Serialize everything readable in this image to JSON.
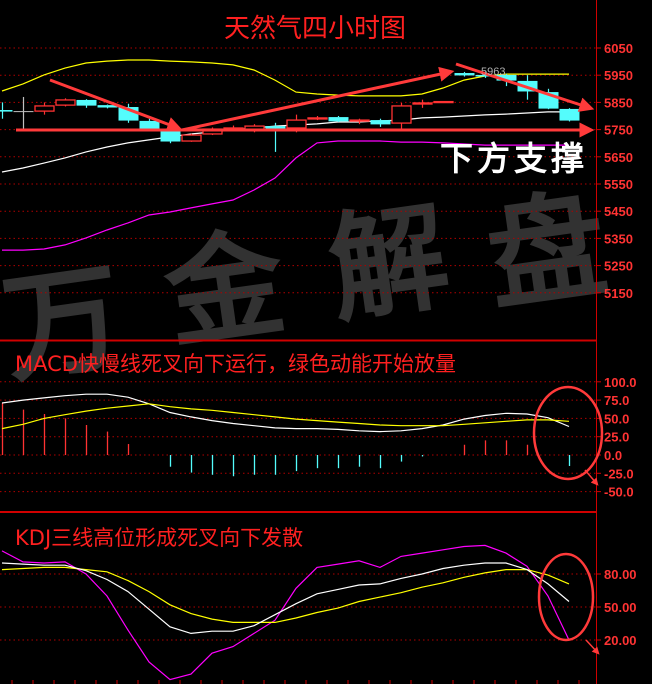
{
  "title": "天然气四小时图",
  "annotations": {
    "support_label": "下方支撑",
    "high_label": "5963",
    "macd_note": "MACD快慢线死叉向下运行，绿色动能开始放量",
    "kdj_note": "KDJ三线高位形成死叉向下发散"
  },
  "watermark": [
    "万",
    "金",
    "解",
    "盘"
  ],
  "colors": {
    "up": "#ff3232",
    "down": "#54fcfc",
    "doji": "#c0c0c0",
    "upper_band": "#ffff00",
    "middle_band": "#ffffff",
    "lower_band": "#ff00ff",
    "grid": "#b00000",
    "annotation": "#ff3a3a"
  },
  "chart_data": [
    {
      "type": "candlestick",
      "title": "天然气四小时图",
      "y_ticks": [
        "6050",
        "5950",
        "5850",
        "5750",
        "5650",
        "5550",
        "5450",
        "5350",
        "5250",
        "5150"
      ],
      "ylim": [
        5120,
        6225
      ],
      "grid": true,
      "candles": [
        {
          "o": 5822,
          "h": 5850,
          "l": 5790,
          "c": 5818
        },
        {
          "o": 5818,
          "h": 5870,
          "l": 5752,
          "c": 5818
        },
        {
          "o": 5818,
          "h": 5850,
          "l": 5805,
          "c": 5837
        },
        {
          "o": 5840,
          "h": 5865,
          "l": 5835,
          "c": 5859
        },
        {
          "o": 5859,
          "h": 5862,
          "l": 5830,
          "c": 5840
        },
        {
          "o": 5840,
          "h": 5842,
          "l": 5828,
          "c": 5833
        },
        {
          "o": 5833,
          "h": 5845,
          "l": 5775,
          "c": 5785
        },
        {
          "o": 5782,
          "h": 5790,
          "l": 5745,
          "c": 5752
        },
        {
          "o": 5749,
          "h": 5752,
          "l": 5700,
          "c": 5708
        },
        {
          "o": 5708,
          "h": 5735,
          "l": 5705,
          "c": 5730
        },
        {
          "o": 5734,
          "h": 5758,
          "l": 5730,
          "c": 5752
        },
        {
          "o": 5750,
          "h": 5765,
          "l": 5745,
          "c": 5756
        },
        {
          "o": 5749,
          "h": 5770,
          "l": 5740,
          "c": 5763
        },
        {
          "o": 5763,
          "h": 5775,
          "l": 5668,
          "c": 5756
        },
        {
          "o": 5756,
          "h": 5805,
          "l": 5740,
          "c": 5785
        },
        {
          "o": 5789,
          "h": 5800,
          "l": 5785,
          "c": 5793
        },
        {
          "o": 5796,
          "h": 5800,
          "l": 5778,
          "c": 5782
        },
        {
          "o": 5782,
          "h": 5790,
          "l": 5770,
          "c": 5785
        },
        {
          "o": 5785,
          "h": 5790,
          "l": 5760,
          "c": 5771
        },
        {
          "o": 5774,
          "h": 5848,
          "l": 5750,
          "c": 5837
        },
        {
          "o": 5844,
          "h": 5860,
          "l": 5830,
          "c": 5848
        },
        {
          "o": 5851,
          "h": 5853,
          "l": 5851,
          "c": 5853
        },
        {
          "o": 5958,
          "h": 5962,
          "l": 5945,
          "c": 5951
        },
        {
          "o": 5951,
          "h": 5963,
          "l": 5940,
          "c": 5947
        },
        {
          "o": 5951,
          "h": 5955,
          "l": 5910,
          "c": 5932
        },
        {
          "o": 5929,
          "h": 5950,
          "l": 5860,
          "c": 5892
        },
        {
          "o": 5888,
          "h": 5900,
          "l": 5825,
          "c": 5829
        },
        {
          "o": 5826,
          "h": 5829,
          "l": 5780,
          "c": 5785
        }
      ],
      "bollinger": {
        "upper": [
          5892,
          5918,
          5951,
          5976,
          5995,
          6002,
          6006,
          6006,
          6002,
          5999,
          5995,
          5988,
          5969,
          5932,
          5888,
          5881,
          5877,
          5874,
          5874,
          5874,
          5881,
          5903,
          5932,
          5947,
          5954,
          5954,
          5954,
          5954
        ],
        "middle": [
          5594,
          5609,
          5627,
          5646,
          5668,
          5686,
          5701,
          5712,
          5723,
          5734,
          5741,
          5749,
          5756,
          5763,
          5767,
          5771,
          5778,
          5778,
          5782,
          5785,
          5793,
          5796,
          5800,
          5804,
          5807,
          5811,
          5815,
          5815
        ],
        "lower": [
          5307,
          5307,
          5311,
          5326,
          5352,
          5381,
          5407,
          5436,
          5447,
          5462,
          5477,
          5491,
          5528,
          5572,
          5646,
          5701,
          5708,
          5708,
          5708,
          5704,
          5704,
          5701,
          5697,
          5693,
          5693,
          5693,
          5693,
          5693
        ]
      }
    },
    {
      "type": "bar+line",
      "title": "MACD",
      "y_ticks": [
        "100.0",
        "75.0",
        "50.0",
        "25.0",
        "0.0",
        "-25.0",
        "-50.0"
      ],
      "ylim": [
        -50,
        100
      ],
      "grid": true,
      "histogram": [
        71,
        62,
        56,
        50,
        41,
        32,
        15,
        0,
        -16,
        -24,
        -27,
        -29,
        -27,
        -27,
        -22,
        -18,
        -18,
        -16,
        -18,
        -9,
        -2,
        0,
        14,
        20,
        20,
        14,
        0,
        -15
      ],
      "dif": [
        71,
        75,
        78,
        81,
        83,
        83,
        79,
        70,
        58,
        52,
        47,
        43,
        40,
        37,
        36,
        36,
        35,
        33,
        32,
        33,
        36,
        41,
        49,
        54,
        57,
        56,
        51,
        39
      ],
      "dea": [
        36,
        42,
        50,
        55,
        60,
        64,
        67,
        70,
        66,
        63,
        61,
        58,
        55,
        52,
        49,
        47,
        45,
        43,
        41,
        40,
        40,
        40,
        42,
        44,
        46,
        48,
        48,
        46
      ]
    },
    {
      "type": "line",
      "title": "KDJ",
      "y_ticks": [
        "80.00",
        "50.00",
        "20.00"
      ],
      "ylim": [
        -16,
        113
      ],
      "grid": true,
      "k": [
        90,
        89,
        88,
        88,
        83,
        75,
        64,
        48,
        32,
        26,
        28,
        28,
        33,
        43,
        53,
        62,
        66,
        70,
        71,
        76,
        80,
        85,
        88,
        90,
        90,
        84,
        71,
        55
      ],
      "d": [
        84,
        85,
        86,
        86,
        84,
        82,
        74,
        64,
        52,
        44,
        39,
        36,
        36,
        36,
        40,
        45,
        49,
        55,
        59,
        63,
        68,
        72,
        77,
        81,
        84,
        84,
        79,
        71
      ],
      "j": [
        101,
        91,
        90,
        91,
        80,
        60,
        29,
        0,
        -16,
        -11,
        8,
        14,
        26,
        38,
        67,
        86,
        89,
        92,
        86,
        96,
        99,
        102,
        105,
        106,
        99,
        87,
        60,
        20
      ]
    }
  ]
}
